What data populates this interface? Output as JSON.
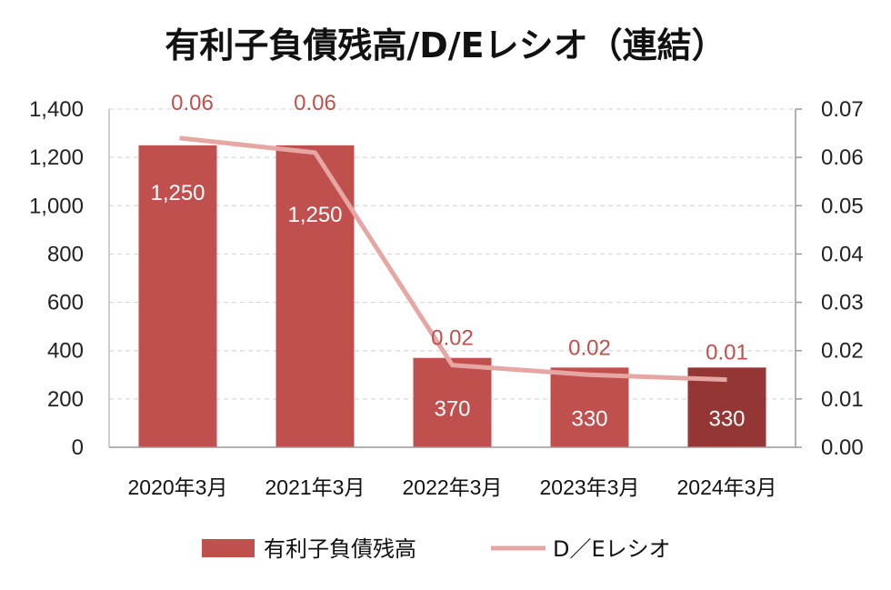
{
  "chart_data": {
    "type": "bar",
    "title": "有利子負債残高/D/Eレシオ（連結）",
    "categories": [
      "2020年3月",
      "2021年3月",
      "2022年3月",
      "2023年3月",
      "2024年3月"
    ],
    "y_left": {
      "ylim": [
        0,
        1400
      ],
      "ticks": [
        "0",
        "200",
        "400",
        "600",
        "800",
        "1,000",
        "1,200",
        "1,400"
      ]
    },
    "y_right": {
      "ylim": [
        0,
        0.07
      ],
      "ticks": [
        "0.00",
        "0.01",
        "0.02",
        "0.03",
        "0.04",
        "0.05",
        "0.06",
        "0.07"
      ]
    },
    "grid": true,
    "legend_position": "bottom",
    "series": [
      {
        "name": "有利子負債残高",
        "type": "bar",
        "axis": "left",
        "values": [
          1250,
          1250,
          370,
          330,
          330
        ],
        "labels": [
          "1,250",
          "1,250",
          "370",
          "330",
          "330"
        ],
        "color": "#c0504d",
        "highlight_color": "#943634",
        "highlight_index": 4
      },
      {
        "name": "D／Eレシオ",
        "type": "line",
        "axis": "right",
        "values": [
          0.064,
          0.061,
          0.017,
          0.015,
          0.014
        ],
        "labels": [
          "0.06",
          "0.06",
          "0.02",
          "0.02",
          "0.01"
        ],
        "color": "#e6a6a4"
      }
    ]
  }
}
